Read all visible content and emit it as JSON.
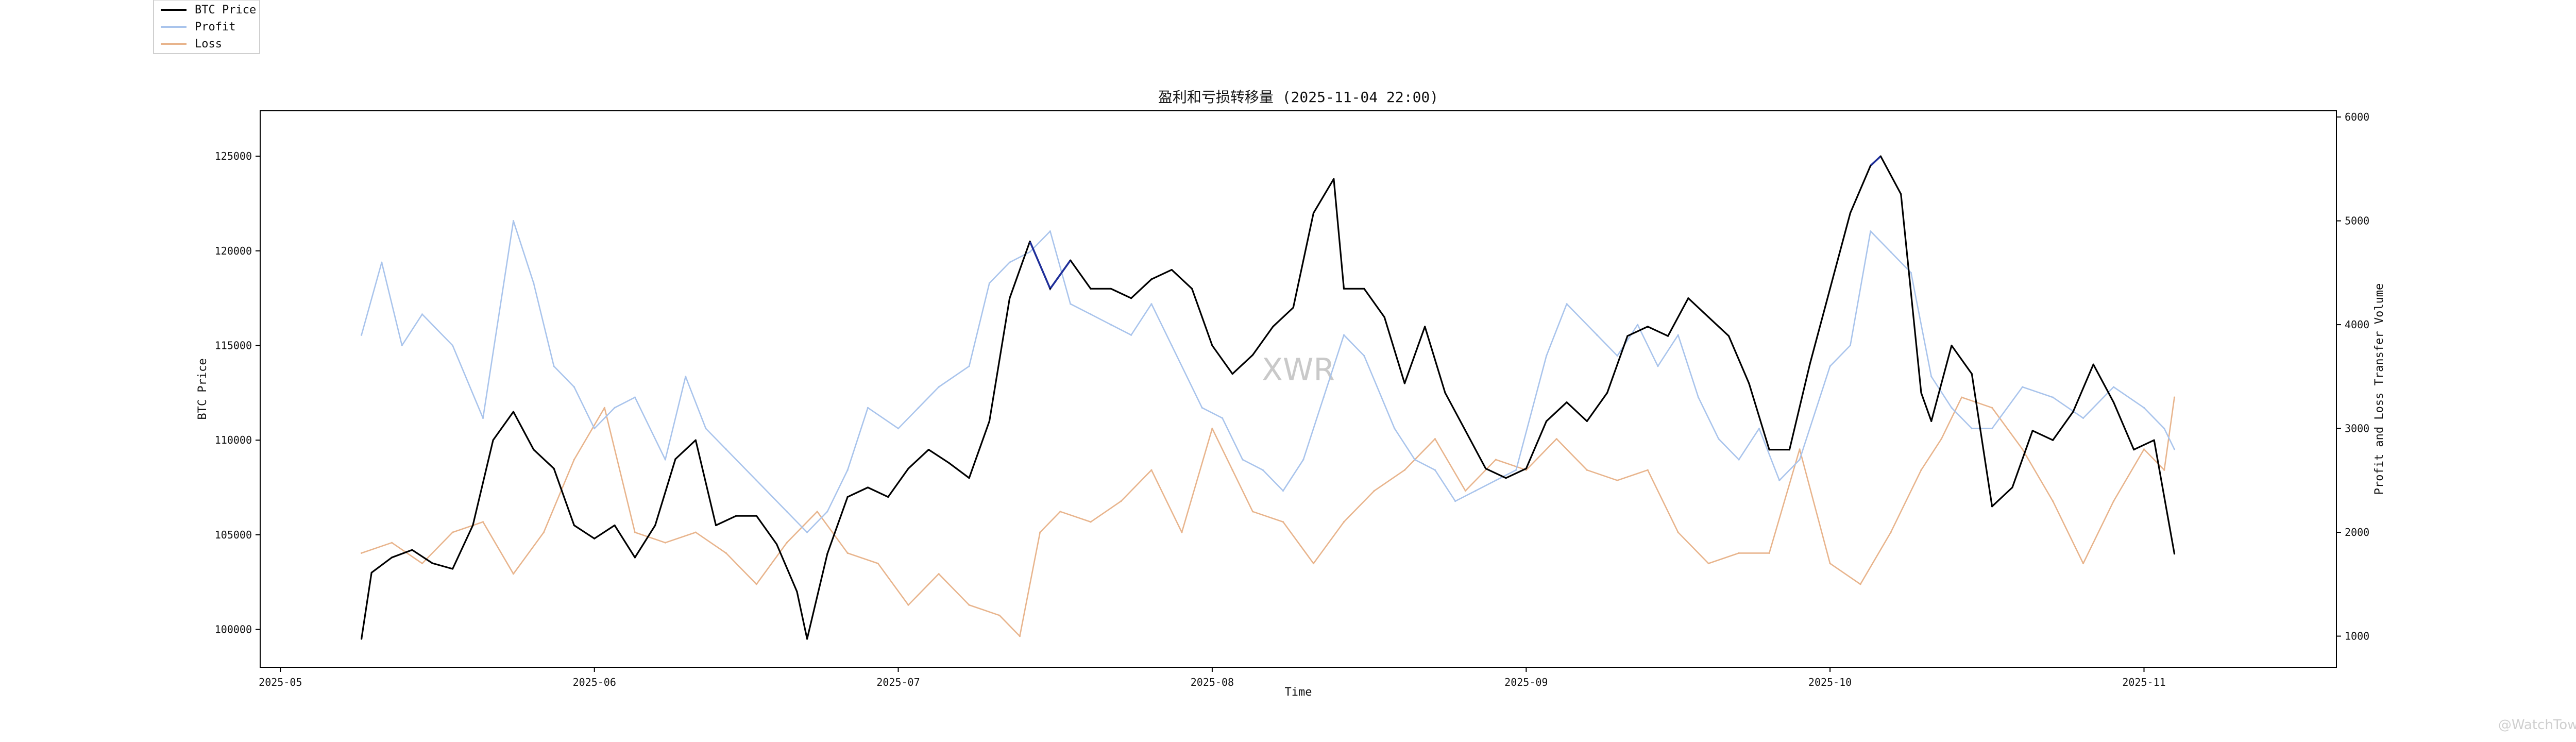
{
  "chart_data": {
    "type": "line",
    "title": "盈利和亏损转移量 (2025-11-04 22:00)",
    "xlabel": "Time",
    "ylabel_left": "BTC Price",
    "ylabel_right": "Profit and Loss Transfer Volume",
    "x_ticks": [
      "2025-05",
      "2025-06",
      "2025-07",
      "2025-08",
      "2025-09",
      "2025-10",
      "2025-11"
    ],
    "x_tick_dates": [
      "2025-05-01",
      "2025-06-01",
      "2025-07-01",
      "2025-08-01",
      "2025-09-01",
      "2025-10-01",
      "2025-11-01"
    ],
    "xlim": [
      "2025-04-29",
      "2025-11-20"
    ],
    "ylim_left": [
      98000,
      127400
    ],
    "ylim_right": [
      700,
      6060
    ],
    "y_ticks_left": [
      100000,
      105000,
      110000,
      115000,
      120000,
      125000
    ],
    "y_ticks_right": [
      1000,
      2000,
      3000,
      4000,
      5000,
      6000
    ],
    "legend": {
      "placement": "top-left-outside"
    },
    "grid": false,
    "colors": {
      "price": "#000000",
      "price_highlight": "#1f2f9a",
      "profit": "#a9c4ec",
      "loss": "#e8b48c"
    },
    "series": [
      {
        "name": "BTC Price",
        "axis": "left",
        "x": [
          "2025-05-09",
          "2025-05-10",
          "2025-05-12",
          "2025-05-14",
          "2025-05-16",
          "2025-05-18",
          "2025-05-20",
          "2025-05-22",
          "2025-05-24",
          "2025-05-26",
          "2025-05-28",
          "2025-05-30",
          "2025-06-01",
          "2025-06-03",
          "2025-06-05",
          "2025-06-07",
          "2025-06-09",
          "2025-06-11",
          "2025-06-13",
          "2025-06-15",
          "2025-06-17",
          "2025-06-19",
          "2025-06-21",
          "2025-06-22",
          "2025-06-24",
          "2025-06-26",
          "2025-06-28",
          "2025-06-30",
          "2025-07-02",
          "2025-07-04",
          "2025-07-06",
          "2025-07-08",
          "2025-07-10",
          "2025-07-12",
          "2025-07-14",
          "2025-07-16",
          "2025-07-18",
          "2025-07-20",
          "2025-07-22",
          "2025-07-24",
          "2025-07-26",
          "2025-07-28",
          "2025-07-30",
          "2025-08-01",
          "2025-08-03",
          "2025-08-05",
          "2025-08-07",
          "2025-08-09",
          "2025-08-11",
          "2025-08-13",
          "2025-08-14",
          "2025-08-16",
          "2025-08-18",
          "2025-08-20",
          "2025-08-22",
          "2025-08-24",
          "2025-08-26",
          "2025-08-28",
          "2025-08-30",
          "2025-09-01",
          "2025-09-03",
          "2025-09-05",
          "2025-09-07",
          "2025-09-09",
          "2025-09-11",
          "2025-09-13",
          "2025-09-15",
          "2025-09-17",
          "2025-09-19",
          "2025-09-21",
          "2025-09-23",
          "2025-09-25",
          "2025-09-27",
          "2025-09-29",
          "2025-10-01",
          "2025-10-03",
          "2025-10-05",
          "2025-10-06",
          "2025-10-08",
          "2025-10-10",
          "2025-10-11",
          "2025-10-13",
          "2025-10-15",
          "2025-10-17",
          "2025-10-19",
          "2025-10-21",
          "2025-10-23",
          "2025-10-25",
          "2025-10-27",
          "2025-10-29",
          "2025-10-31",
          "2025-11-02",
          "2025-11-04"
        ],
        "values": [
          99500,
          103000,
          103800,
          104200,
          103500,
          103200,
          105500,
          110000,
          111500,
          109500,
          108500,
          105500,
          104800,
          105500,
          103800,
          105500,
          109000,
          110000,
          105500,
          106000,
          106000,
          104500,
          102000,
          99500,
          104000,
          107000,
          107500,
          107000,
          108500,
          109500,
          108800,
          108000,
          111000,
          117500,
          120500,
          118000,
          119500,
          118000,
          118000,
          117500,
          118500,
          119000,
          118000,
          115000,
          113500,
          114500,
          116000,
          117000,
          122000,
          123800,
          118000,
          118000,
          116500,
          113000,
          116000,
          112500,
          110500,
          108500,
          108000,
          108500,
          111000,
          112000,
          111000,
          112500,
          115500,
          116000,
          115500,
          117500,
          116500,
          115500,
          113000,
          109500,
          109500,
          114000,
          118000,
          122000,
          124500,
          125000,
          123000,
          112500,
          111000,
          115000,
          113500,
          106500,
          107500,
          110500,
          110000,
          111500,
          114000,
          112000,
          109500,
          110000,
          104000
        ],
        "highlight_ranges": [
          [
            "2025-07-14",
            "2025-07-18"
          ],
          [
            "2025-10-04",
            "2025-10-07"
          ]
        ]
      },
      {
        "name": "Profit",
        "axis": "right",
        "x": [
          "2025-05-09",
          "2025-05-11",
          "2025-05-13",
          "2025-05-15",
          "2025-05-18",
          "2025-05-21",
          "2025-05-24",
          "2025-05-26",
          "2025-05-28",
          "2025-05-30",
          "2025-06-01",
          "2025-06-03",
          "2025-06-05",
          "2025-06-08",
          "2025-06-10",
          "2025-06-12",
          "2025-06-14",
          "2025-06-17",
          "2025-06-20",
          "2025-06-22",
          "2025-06-24",
          "2025-06-26",
          "2025-06-28",
          "2025-07-01",
          "2025-07-03",
          "2025-07-05",
          "2025-07-08",
          "2025-07-10",
          "2025-07-12",
          "2025-07-14",
          "2025-07-16",
          "2025-07-18",
          "2025-07-20",
          "2025-07-22",
          "2025-07-24",
          "2025-07-26",
          "2025-07-28",
          "2025-07-31",
          "2025-08-02",
          "2025-08-04",
          "2025-08-06",
          "2025-08-08",
          "2025-08-10",
          "2025-08-12",
          "2025-08-14",
          "2025-08-16",
          "2025-08-19",
          "2025-08-21",
          "2025-08-23",
          "2025-08-25",
          "2025-08-27",
          "2025-08-29",
          "2025-08-31",
          "2025-09-03",
          "2025-09-05",
          "2025-09-08",
          "2025-09-10",
          "2025-09-12",
          "2025-09-14",
          "2025-09-16",
          "2025-09-18",
          "2025-09-20",
          "2025-09-22",
          "2025-09-24",
          "2025-09-26",
          "2025-09-28",
          "2025-10-01",
          "2025-10-03",
          "2025-10-05",
          "2025-10-07",
          "2025-10-09",
          "2025-10-11",
          "2025-10-13",
          "2025-10-15",
          "2025-10-17",
          "2025-10-20",
          "2025-10-23",
          "2025-10-26",
          "2025-10-29",
          "2025-11-01",
          "2025-11-03",
          "2025-11-04"
        ],
        "values": [
          3900,
          4600,
          3800,
          4100,
          3800,
          3100,
          5000,
          4400,
          3600,
          3400,
          3000,
          3200,
          3300,
          2700,
          3500,
          3000,
          2800,
          2500,
          2200,
          2000,
          2200,
          2600,
          3200,
          3000,
          3200,
          3400,
          3600,
          4400,
          4600,
          4700,
          4900,
          4200,
          4100,
          4000,
          3900,
          4200,
          3800,
          3200,
          3100,
          2700,
          2600,
          2400,
          2700,
          3300,
          3900,
          3700,
          3000,
          2700,
          2600,
          2300,
          2400,
          2500,
          2600,
          3700,
          4200,
          3900,
          3700,
          4000,
          3600,
          3900,
          3300,
          2900,
          2700,
          3000,
          2500,
          2700,
          3600,
          3800,
          4900,
          4700,
          4500,
          3500,
          3200,
          3000,
          3000,
          3400,
          3300,
          3100,
          3400,
          3200,
          3000,
          2800
        ]
      },
      {
        "name": "Loss",
        "axis": "right",
        "x": [
          "2025-05-09",
          "2025-05-12",
          "2025-05-15",
          "2025-05-18",
          "2025-05-21",
          "2025-05-24",
          "2025-05-27",
          "2025-05-30",
          "2025-06-02",
          "2025-06-05",
          "2025-06-08",
          "2025-06-11",
          "2025-06-14",
          "2025-06-17",
          "2025-06-20",
          "2025-06-23",
          "2025-06-26",
          "2025-06-29",
          "2025-07-02",
          "2025-07-05",
          "2025-07-08",
          "2025-07-11",
          "2025-07-13",
          "2025-07-15",
          "2025-07-17",
          "2025-07-20",
          "2025-07-23",
          "2025-07-26",
          "2025-07-29",
          "2025-08-01",
          "2025-08-03",
          "2025-08-05",
          "2025-08-08",
          "2025-08-11",
          "2025-08-14",
          "2025-08-17",
          "2025-08-20",
          "2025-08-23",
          "2025-08-26",
          "2025-08-29",
          "2025-09-01",
          "2025-09-04",
          "2025-09-07",
          "2025-09-10",
          "2025-09-13",
          "2025-09-16",
          "2025-09-19",
          "2025-09-22",
          "2025-09-25",
          "2025-09-28",
          "2025-10-01",
          "2025-10-04",
          "2025-10-07",
          "2025-10-10",
          "2025-10-12",
          "2025-10-14",
          "2025-10-17",
          "2025-10-20",
          "2025-10-23",
          "2025-10-26",
          "2025-10-29",
          "2025-11-01",
          "2025-11-03",
          "2025-11-04"
        ],
        "values": [
          1800,
          1900,
          1700,
          2000,
          2100,
          1600,
          2000,
          2700,
          3200,
          2000,
          1900,
          2000,
          1800,
          1500,
          1900,
          2200,
          1800,
          1700,
          1300,
          1600,
          1300,
          1200,
          1000,
          2000,
          2200,
          2100,
          2300,
          2600,
          2000,
          3000,
          2600,
          2200,
          2100,
          1700,
          2100,
          2400,
          2600,
          2900,
          2400,
          2700,
          2600,
          2900,
          2600,
          2500,
          2600,
          2000,
          1700,
          1800,
          1800,
          2800,
          1700,
          1500,
          2000,
          2600,
          2900,
          3300,
          3200,
          2800,
          2300,
          1700,
          2300,
          2800,
          2600,
          3300
        ]
      }
    ]
  },
  "watermark": "XWR",
  "credit": "@WatchTower"
}
